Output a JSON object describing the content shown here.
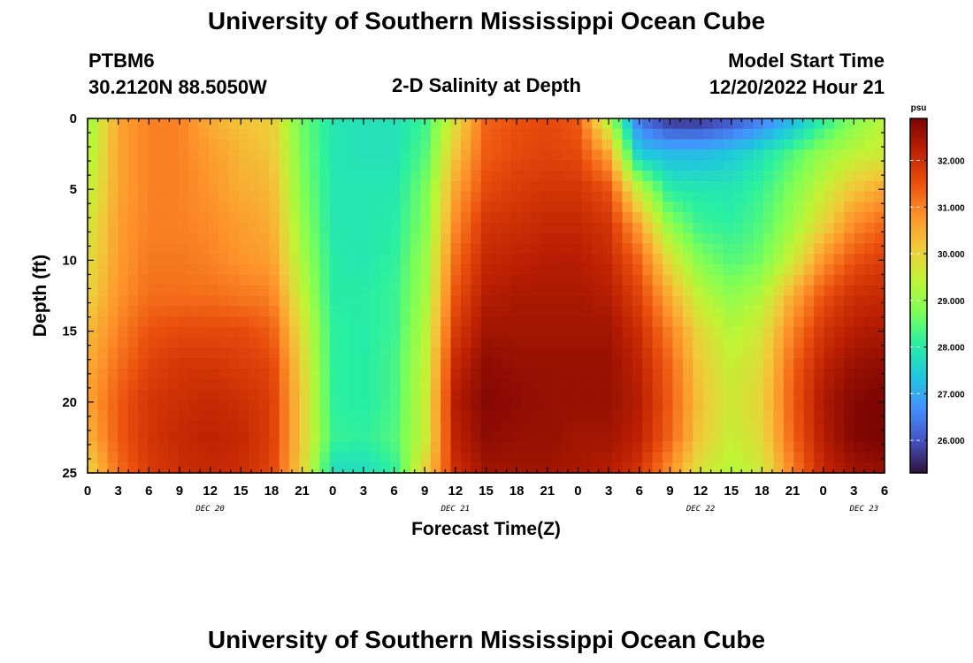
{
  "header": {
    "title": "University of Southern Mississippi Ocean Cube",
    "station": "PTBM6",
    "location": "30.2120N  88.5050W",
    "subtitle": "2-D Salinity at Depth",
    "model_start_label": "Model Start Time",
    "model_start_value": "12/20/2022 Hour 21",
    "footer_title": "University of Southern Mississippi Ocean Cube"
  },
  "colors": {
    "colormap": [
      "#30123b",
      "#4454c4",
      "#4490fe",
      "#1fc8de",
      "#29efa2",
      "#7dff56",
      "#c1f334",
      "#f1ca3a",
      "#fe922a",
      "#ea4f0d",
      "#be2102",
      "#7a0403"
    ]
  },
  "chart_data": {
    "type": "heatmap",
    "xlabel": "Forecast Time(Z)",
    "ylabel": "Depth (ft)",
    "colorbar_unit": "psu",
    "x_range_hours": [
      0,
      78
    ],
    "x_tick_labels": [
      "0",
      "3",
      "6",
      "9",
      "12",
      "15",
      "18",
      "21",
      "0",
      "3",
      "6",
      "9",
      "12",
      "15",
      "18",
      "21",
      "0",
      "3",
      "6",
      "9",
      "12",
      "15",
      "18",
      "21",
      "0",
      "3",
      "6"
    ],
    "day_labels": [
      {
        "label": "DEC 20",
        "hour": 12
      },
      {
        "label": "DEC 21",
        "hour": 36
      },
      {
        "label": "DEC 22",
        "hour": 60
      },
      {
        "label": "DEC 23",
        "hour": 76
      }
    ],
    "y_range": [
      0,
      25
    ],
    "y_ticks": [
      0,
      5,
      10,
      15,
      20,
      25
    ],
    "y_reversed": true,
    "colorbar_range": [
      25.3,
      32.9
    ],
    "colorbar_ticks": [
      "26.000",
      "27.000",
      "28.000",
      "29.000",
      "30.000",
      "31.000",
      "32.000"
    ],
    "depths": [
      0,
      2.5,
      5,
      7.5,
      10,
      12.5,
      15,
      17.5,
      20,
      22.5,
      25
    ],
    "hours": [
      0,
      3,
      6,
      9,
      12,
      15,
      18,
      21,
      24,
      27,
      30,
      33,
      36,
      39,
      42,
      45,
      48,
      51,
      54,
      57,
      60,
      63,
      66,
      69,
      72,
      75,
      78
    ],
    "values": [
      [
        29.0,
        30.6,
        31.0,
        31.0,
        30.5,
        30.2,
        30.1,
        28.6,
        27.9,
        27.8,
        27.8,
        28.2,
        29.8,
        31.3,
        31.5,
        31.6,
        31.4,
        29.2,
        26.3,
        25.6,
        25.6,
        25.9,
        26.4,
        27.1,
        28.0,
        28.8,
        29.4
      ],
      [
        29.2,
        30.6,
        31.0,
        31.0,
        30.7,
        30.4,
        30.2,
        28.7,
        27.9,
        27.8,
        27.8,
        28.4,
        30.2,
        31.4,
        31.6,
        31.7,
        31.6,
        30.6,
        27.4,
        27.2,
        27.2,
        27.4,
        27.8,
        28.4,
        29.0,
        29.4,
        29.6
      ],
      [
        29.4,
        30.6,
        31.0,
        31.0,
        30.8,
        30.5,
        30.4,
        28.8,
        27.9,
        27.9,
        27.9,
        28.7,
        30.6,
        31.6,
        31.8,
        31.9,
        31.9,
        31.5,
        29.4,
        28.0,
        27.9,
        27.9,
        28.2,
        28.8,
        29.5,
        30.2,
        30.6
      ],
      [
        29.6,
        30.7,
        31.0,
        31.0,
        30.9,
        30.7,
        30.5,
        29.0,
        27.9,
        27.9,
        28.0,
        28.8,
        30.9,
        31.9,
        32.0,
        32.1,
        32.1,
        31.9,
        30.6,
        28.9,
        28.2,
        28.1,
        28.4,
        29.1,
        30.0,
        30.9,
        31.3
      ],
      [
        29.8,
        30.7,
        31.1,
        31.1,
        31.0,
        30.8,
        30.7,
        29.2,
        28.0,
        27.9,
        28.1,
        29.0,
        31.2,
        32.1,
        32.2,
        32.3,
        32.3,
        32.1,
        31.3,
        29.8,
        28.8,
        28.4,
        28.7,
        29.6,
        30.8,
        31.5,
        31.8
      ],
      [
        30.0,
        30.8,
        31.2,
        31.2,
        31.2,
        31.1,
        31.0,
        29.5,
        28.0,
        28.0,
        28.2,
        29.1,
        31.5,
        32.3,
        32.4,
        32.4,
        32.4,
        32.3,
        31.7,
        30.5,
        29.4,
        28.9,
        29.3,
        30.5,
        31.5,
        32.0,
        32.1
      ],
      [
        30.3,
        31.0,
        31.5,
        31.6,
        31.6,
        31.6,
        31.4,
        29.8,
        28.1,
        28.0,
        28.2,
        29.3,
        31.8,
        32.5,
        32.5,
        32.5,
        32.5,
        32.5,
        32.0,
        31.0,
        29.9,
        29.3,
        29.7,
        31.0,
        31.9,
        32.3,
        32.4
      ],
      [
        30.5,
        31.2,
        31.7,
        31.9,
        31.9,
        31.8,
        31.7,
        30.0,
        28.1,
        28.0,
        28.3,
        29.4,
        32.1,
        32.7,
        32.6,
        32.6,
        32.6,
        32.6,
        32.2,
        31.3,
        30.1,
        29.5,
        29.9,
        31.3,
        32.2,
        32.6,
        32.7
      ],
      [
        30.6,
        31.4,
        31.9,
        32.0,
        32.1,
        32.0,
        31.8,
        30.1,
        28.1,
        28.0,
        28.3,
        29.5,
        32.3,
        32.8,
        32.7,
        32.6,
        32.6,
        32.6,
        32.3,
        31.4,
        30.2,
        29.6,
        30.0,
        31.4,
        32.4,
        32.8,
        32.9
      ],
      [
        30.4,
        31.4,
        31.9,
        32.1,
        32.2,
        32.1,
        31.8,
        30.1,
        28.2,
        28.1,
        28.4,
        29.5,
        32.2,
        32.7,
        32.6,
        32.6,
        32.5,
        32.5,
        32.2,
        31.3,
        30.1,
        29.5,
        29.9,
        31.3,
        32.3,
        32.8,
        32.9
      ],
      [
        29.9,
        31.2,
        31.8,
        32.0,
        32.1,
        32.0,
        31.7,
        30.0,
        27.7,
        27.7,
        28.1,
        30.0,
        32.0,
        32.5,
        32.5,
        32.5,
        32.4,
        32.3,
        31.9,
        30.8,
        29.7,
        29.3,
        29.6,
        31.0,
        32.1,
        32.5,
        32.6
      ]
    ]
  }
}
